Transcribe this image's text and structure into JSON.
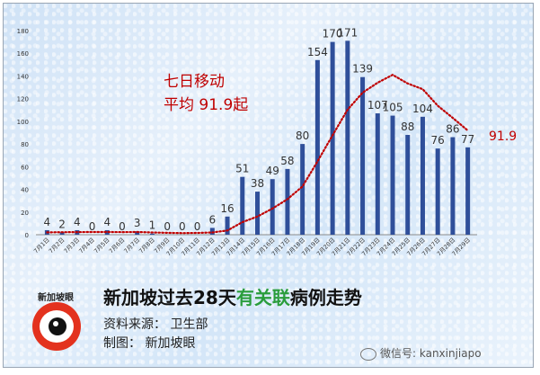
{
  "chart_data": {
    "type": "bar",
    "categories": [
      "7月1日",
      "7月2日",
      "7月3日",
      "7月4日",
      "7月5日",
      "7月6日",
      "7月7日",
      "7月8日",
      "7月9日",
      "7月10日",
      "7月11日",
      "7月12日",
      "7月13日",
      "7月14日",
      "7月15日",
      "7月16日",
      "7月17日",
      "7月18日",
      "7月19日",
      "7月20日",
      "7月21日",
      "7月22日",
      "7月23日",
      "7月24日",
      "7月25日",
      "7月26日",
      "7月27日",
      "7月28日",
      "7月29日"
    ],
    "values": [
      4,
      2,
      4,
      0,
      4,
      0,
      3,
      1,
      0,
      0,
      0,
      6,
      16,
      51,
      38,
      49,
      58,
      80,
      154,
      170,
      171,
      139,
      107,
      105,
      88,
      104,
      76,
      86,
      77
    ],
    "moving_average": [
      2.1,
      2.2,
      2.3,
      2.4,
      2.4,
      2.3,
      2.4,
      2.0,
      1.7,
      1.4,
      1.6,
      2.0,
      3.7,
      11.1,
      16.0,
      23.1,
      31.3,
      42.6,
      64.7,
      87.6,
      110.2,
      125.3,
      134.0,
      141.0,
      133.4,
      128.3,
      113.7,
      103.0,
      91.9
    ],
    "ylim": [
      0,
      180
    ],
    "yticks": [
      0,
      20,
      40,
      60,
      80,
      100,
      120,
      140,
      160,
      180
    ],
    "annotation": "七日移动\n平均 91.9起",
    "end_label": "91.9",
    "colors": {
      "bar": "#2f4f9a",
      "moving_average": "#c00000",
      "label": "#333333"
    }
  },
  "title": {
    "pre": "新加坡过去28天",
    "highlight": "有关联",
    "post": "病例走势"
  },
  "source_line": "资料来源： 卫生部",
  "maker_line": "制图： 新加坡眼",
  "logo_text": "新加坡眼",
  "watermark": "微信号: kanxinjiapo"
}
